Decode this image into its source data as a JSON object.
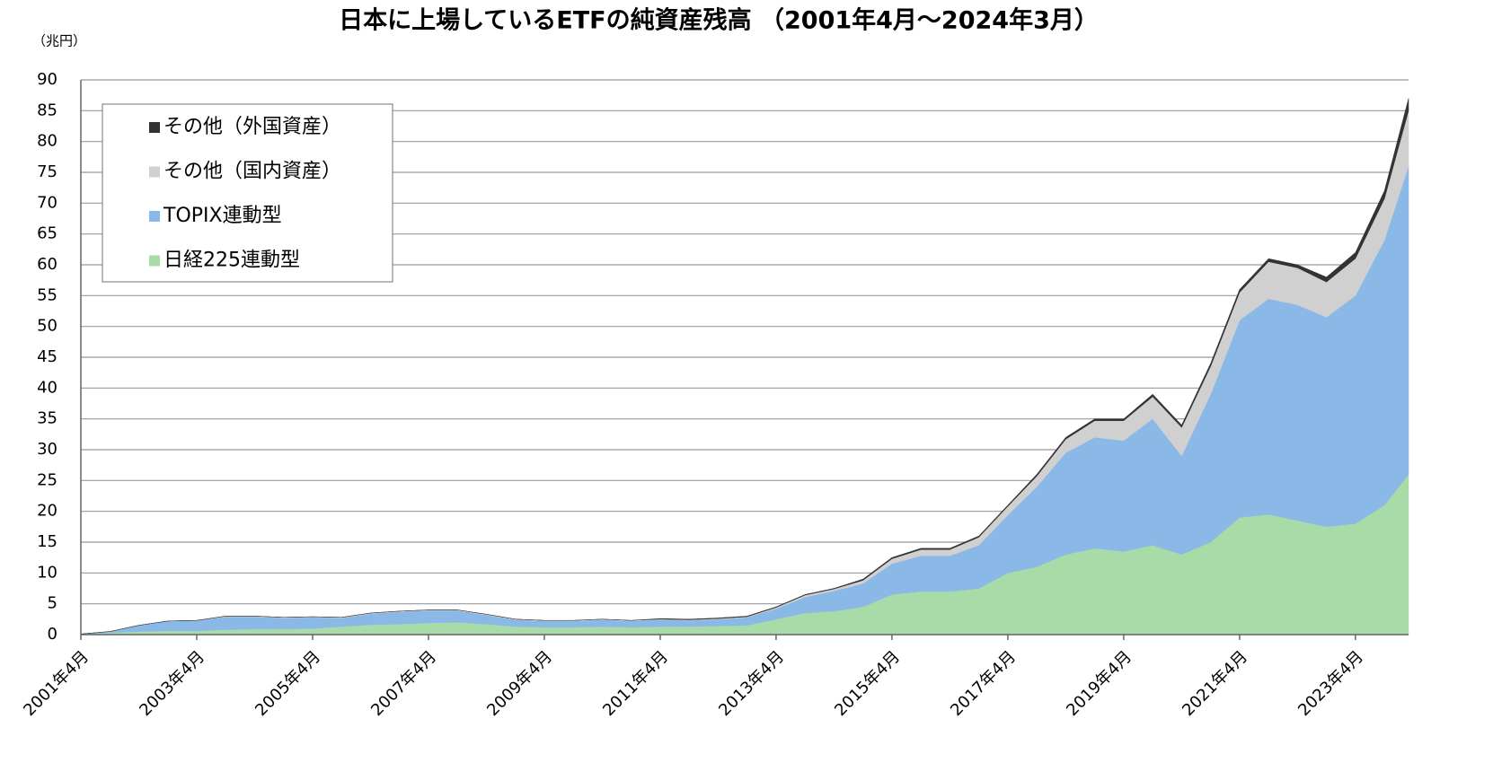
{
  "chart_data": {
    "type": "stacked_area",
    "title": "日本に上場しているETFの純資産残高 （2001年4月～2024年3月）",
    "y_unit": "（兆円）",
    "x": [
      "2001-04",
      "2001-10",
      "2002-04",
      "2002-10",
      "2003-04",
      "2003-10",
      "2004-04",
      "2004-10",
      "2005-04",
      "2005-10",
      "2006-04",
      "2006-10",
      "2007-04",
      "2007-10",
      "2008-04",
      "2008-10",
      "2009-04",
      "2009-10",
      "2010-04",
      "2010-10",
      "2011-04",
      "2011-10",
      "2012-04",
      "2012-10",
      "2013-04",
      "2013-10",
      "2014-04",
      "2014-10",
      "2015-04",
      "2015-10",
      "2016-04",
      "2016-10",
      "2017-04",
      "2017-10",
      "2018-04",
      "2018-10",
      "2019-04",
      "2019-10",
      "2020-04",
      "2020-10",
      "2021-04",
      "2021-10",
      "2022-04",
      "2022-10",
      "2023-04",
      "2023-10",
      "2024-03"
    ],
    "series": [
      {
        "name": "日経225連動型",
        "color": "#a8dba8",
        "values": [
          0.05,
          0.3,
          0.5,
          0.6,
          0.6,
          0.8,
          0.9,
          0.9,
          1.0,
          1.3,
          1.6,
          1.7,
          1.9,
          2.0,
          1.7,
          1.3,
          1.2,
          1.2,
          1.3,
          1.2,
          1.3,
          1.3,
          1.4,
          1.5,
          2.5,
          3.5,
          3.8,
          4.5,
          6.5,
          7.0,
          7.0,
          7.5,
          10,
          11,
          13,
          14,
          13.5,
          14.5,
          13,
          15,
          19,
          19.5,
          18.5,
          17.5,
          18,
          21,
          26
        ]
      },
      {
        "name": "TOPIX連動型",
        "color": "#8ab9e8",
        "values": [
          0.05,
          0.2,
          1.0,
          1.6,
          1.7,
          2.1,
          2.0,
          1.8,
          1.8,
          1.4,
          1.8,
          2.0,
          2.0,
          1.9,
          1.5,
          1.1,
          1.0,
          1.0,
          1.1,
          1.0,
          1.1,
          1.0,
          1.1,
          1.3,
          1.7,
          2.6,
          3.3,
          3.8,
          5.0,
          5.8,
          5.8,
          7.0,
          9.4,
          13,
          16.5,
          18,
          18,
          20.5,
          16,
          24,
          32,
          35,
          35,
          34,
          37,
          43,
          50
        ]
      },
      {
        "name": "その他（国内資産）",
        "color": "#d0d0d0",
        "values": [
          0,
          0,
          0,
          0,
          0,
          0.1,
          0.1,
          0.1,
          0.1,
          0.1,
          0.1,
          0.1,
          0.1,
          0.1,
          0.1,
          0.1,
          0.1,
          0.1,
          0.1,
          0.1,
          0.1,
          0.1,
          0.1,
          0.1,
          0.2,
          0.3,
          0.3,
          0.5,
          0.8,
          1.0,
          1.0,
          1.3,
          1.4,
          1.7,
          2.2,
          2.7,
          3.2,
          3.6,
          4.6,
          4.5,
          4.5,
          6,
          6,
          5.7,
          6,
          6.7,
          9
        ]
      },
      {
        "name": "その他（外国資産）",
        "color": "#333333",
        "values": [
          0,
          0,
          0,
          0,
          0,
          0,
          0,
          0,
          0,
          0,
          0,
          0,
          0,
          0,
          0,
          0,
          0,
          0,
          0,
          0,
          0.1,
          0.1,
          0.1,
          0.1,
          0.1,
          0.1,
          0.1,
          0.2,
          0.2,
          0.2,
          0.2,
          0.2,
          0.2,
          0.3,
          0.3,
          0.3,
          0.3,
          0.4,
          0.4,
          0.5,
          0.5,
          0.5,
          0.5,
          0.8,
          1.0,
          1.3,
          2
        ]
      }
    ],
    "legend_order": "reverse",
    "xticks": [
      {
        "value": "2001-04",
        "label": "2001年4月"
      },
      {
        "value": "2003-04",
        "label": "2003年4月"
      },
      {
        "value": "2005-04",
        "label": "2005年4月"
      },
      {
        "value": "2007-04",
        "label": "2007年4月"
      },
      {
        "value": "2009-04",
        "label": "2009年4月"
      },
      {
        "value": "2011-04",
        "label": "2011年4月"
      },
      {
        "value": "2013-04",
        "label": "2013年4月"
      },
      {
        "value": "2015-04",
        "label": "2015年4月"
      },
      {
        "value": "2017-04",
        "label": "2017年4月"
      },
      {
        "value": "2019-04",
        "label": "2019年4月"
      },
      {
        "value": "2021-04",
        "label": "2021年4月"
      },
      {
        "value": "2023-04",
        "label": "2023年4月"
      }
    ],
    "ylim": [
      0,
      90
    ],
    "yticks": [
      0,
      5,
      10,
      15,
      20,
      25,
      30,
      35,
      40,
      45,
      50,
      55,
      60,
      65,
      70,
      75,
      80,
      85,
      90
    ],
    "grid": true
  }
}
